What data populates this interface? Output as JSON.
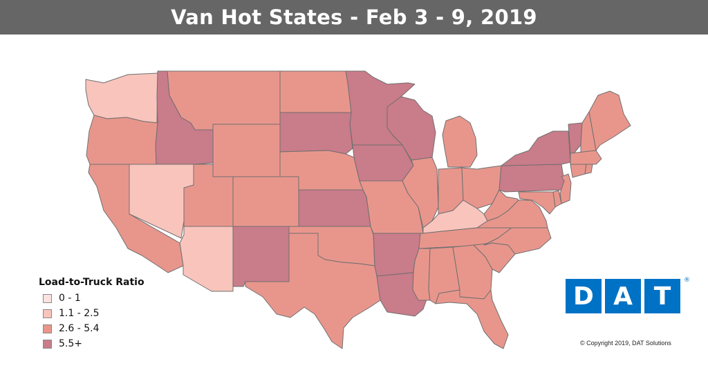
{
  "title": "Van Hot States - Feb 3 - 9, 2019",
  "legend": {
    "title": "Load-to-Truck Ratio",
    "items": [
      {
        "label": "0 - 1",
        "color": "#fbe2e0"
      },
      {
        "label": "1.1 - 2.5",
        "color": "#f8c4bc"
      },
      {
        "label": "2.6 - 5.4",
        "color": "#e8968c"
      },
      {
        "label": "5.5+",
        "color": "#c97c8a"
      }
    ]
  },
  "logo": {
    "letters": [
      "D",
      "A",
      "T"
    ],
    "registered": "®",
    "color": "#0072c6"
  },
  "copyright": "© Copyright 2019, DAT Solutions",
  "states": [
    {
      "code": "WA",
      "cls": 1
    },
    {
      "code": "OR",
      "cls": 2
    },
    {
      "code": "CA",
      "cls": 2
    },
    {
      "code": "NV",
      "cls": 1
    },
    {
      "code": "ID",
      "cls": 3
    },
    {
      "code": "MT",
      "cls": 2
    },
    {
      "code": "WY",
      "cls": 2
    },
    {
      "code": "UT",
      "cls": 2
    },
    {
      "code": "AZ",
      "cls": 1
    },
    {
      "code": "CO",
      "cls": 2
    },
    {
      "code": "NM",
      "cls": 3
    },
    {
      "code": "ND",
      "cls": 2
    },
    {
      "code": "SD",
      "cls": 3
    },
    {
      "code": "NE",
      "cls": 2
    },
    {
      "code": "KS",
      "cls": 3
    },
    {
      "code": "OK",
      "cls": 2
    },
    {
      "code": "TX",
      "cls": 2
    },
    {
      "code": "MN",
      "cls": 3
    },
    {
      "code": "IA",
      "cls": 3
    },
    {
      "code": "MO",
      "cls": 2
    },
    {
      "code": "AR",
      "cls": 3
    },
    {
      "code": "LA",
      "cls": 3
    },
    {
      "code": "WI",
      "cls": 3
    },
    {
      "code": "IL",
      "cls": 2
    },
    {
      "code": "MI",
      "cls": 2
    },
    {
      "code": "IN",
      "cls": 2
    },
    {
      "code": "OH",
      "cls": 2
    },
    {
      "code": "KY",
      "cls": 1
    },
    {
      "code": "TN",
      "cls": 2
    },
    {
      "code": "MS",
      "cls": 2
    },
    {
      "code": "AL",
      "cls": 2
    },
    {
      "code": "GA",
      "cls": 2
    },
    {
      "code": "FL",
      "cls": 2
    },
    {
      "code": "SC",
      "cls": 2
    },
    {
      "code": "NC",
      "cls": 2
    },
    {
      "code": "VA",
      "cls": 2
    },
    {
      "code": "WV",
      "cls": 2
    },
    {
      "code": "PA",
      "cls": 3
    },
    {
      "code": "NY",
      "cls": 3
    },
    {
      "code": "VT",
      "cls": 3
    },
    {
      "code": "NH",
      "cls": 2
    },
    {
      "code": "ME",
      "cls": 2
    },
    {
      "code": "MA",
      "cls": 2
    },
    {
      "code": "CT",
      "cls": 2
    },
    {
      "code": "RI",
      "cls": 2
    },
    {
      "code": "NJ",
      "cls": 2
    },
    {
      "code": "DE",
      "cls": 2
    },
    {
      "code": "MD",
      "cls": 2
    }
  ]
}
